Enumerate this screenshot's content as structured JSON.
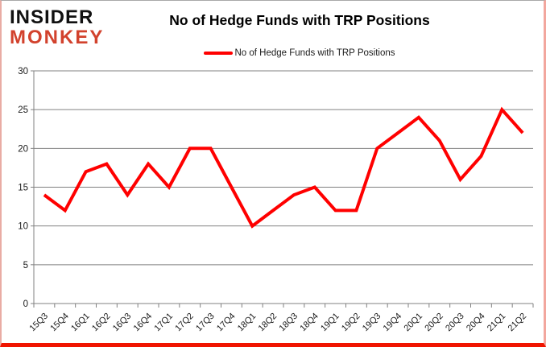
{
  "brand": {
    "line1": "INSIDER",
    "line2": "MONKEY",
    "line2_color": "#d2422d"
  },
  "header": {
    "title": "No of Hedge Funds with TRP Positions"
  },
  "legend": {
    "label": "No of Hedge Funds with TRP Positions",
    "line_color": "#ff0000"
  },
  "chart_data": {
    "type": "line",
    "title": "No of Hedge Funds with TRP Positions",
    "categories": [
      "15Q3",
      "15Q4",
      "16Q1",
      "16Q2",
      "16Q3",
      "16Q4",
      "17Q1",
      "17Q2",
      "17Q3",
      "17Q4",
      "18Q1",
      "18Q2",
      "18Q3",
      "18Q4",
      "19Q1",
      "19Q2",
      "19Q3",
      "19Q4",
      "20Q1",
      "20Q2",
      "20Q3",
      "20Q4",
      "21Q1",
      "21Q2"
    ],
    "series": [
      {
        "name": "No of Hedge Funds with TRP Positions",
        "color": "#ff0000",
        "values": [
          14,
          12,
          17,
          18,
          14,
          18,
          15,
          20,
          20,
          15,
          10,
          12,
          14,
          15,
          12,
          12,
          20,
          22,
          24,
          21,
          16,
          19,
          25,
          22
        ]
      }
    ],
    "xlabel": "",
    "ylabel": "",
    "ylim": [
      0,
      30
    ],
    "yticks": [
      0,
      5,
      10,
      15,
      20,
      25,
      30
    ],
    "grid": true,
    "gridline_color": "#808080",
    "axis_text_color": "#1a1a1a",
    "legend_position": "top",
    "x_label_rotation": 45
  }
}
